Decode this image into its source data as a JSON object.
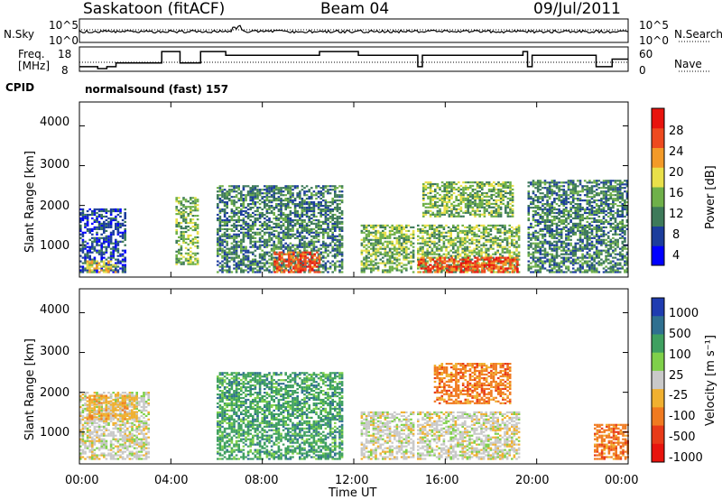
{
  "header": {
    "station": "Saskatoon (fitACF)",
    "beam": "Beam 04",
    "date": "09/Jul/2011"
  },
  "noise_panel": {
    "left_label": "N.Sky",
    "right_label": "N.Search",
    "left_ticks": [
      "10^5",
      "10^0"
    ],
    "right_ticks": [
      "10^5",
      "10^0"
    ]
  },
  "freq_panel": {
    "left_label_1": "Freq.",
    "left_label_2": "[MHz]",
    "right_label": "Nave",
    "left_ticks": [
      "18",
      "8"
    ],
    "right_ticks": [
      "60",
      "0"
    ]
  },
  "cpid": {
    "label": "CPID",
    "value": "normalsound (fast) 157"
  },
  "power_panel": {
    "ylabel": "Slant Range [km]",
    "yticks": [
      "4000",
      "3000",
      "2000",
      "1000"
    ],
    "colorbar_label": "Power [dB]",
    "colorbar_ticks": [
      "28",
      "24",
      "20",
      "16",
      "12",
      "8",
      "4"
    ],
    "colors": [
      "#0000ff",
      "#1c3d9c",
      "#3e7a5a",
      "#6fb04a",
      "#e9e04a",
      "#f39a28",
      "#ee4a1f",
      "#e8140e"
    ]
  },
  "velocity_panel": {
    "ylabel": "Slant Range [km]",
    "yticks": [
      "4000",
      "3000",
      "2000",
      "1000"
    ],
    "colorbar_label": "Velocity [m s⁻¹]",
    "colorbar_ticks": [
      "1000",
      "500",
      "100",
      "25",
      "-25",
      "-100",
      "-500",
      "-1000"
    ],
    "colors": [
      "#1f3cb0",
      "#2f7090",
      "#3fa060",
      "#7fd04a",
      "#c9c9c9",
      "#f0b030",
      "#f07a20",
      "#e83a18",
      "#e8140e"
    ]
  },
  "xaxis": {
    "label": "Time UT",
    "ticks": [
      "00:00",
      "04:00",
      "08:00",
      "12:00",
      "16:00",
      "20:00",
      "00:00"
    ]
  },
  "chart_data": {
    "type": "heatmap",
    "title": "Saskatoon (fitACF)  Beam 04  09/Jul/2011",
    "xlabel": "Time UT",
    "x_range_hours": [
      0,
      24
    ],
    "y_range_km": [
      200,
      4600
    ],
    "panels": [
      {
        "name": "Power [dB]",
        "ylabel": "Slant Range [km]",
        "colorbar": [
          4,
          8,
          12,
          16,
          20,
          24,
          28
        ],
        "data_gaps_hours": [
          [
            3.6,
            4.2
          ],
          [
            5.2,
            5.9
          ],
          [
            11.7,
            12.2
          ],
          [
            14.6,
            14.7
          ],
          [
            19.3,
            19.6
          ]
        ],
        "echo_regions": [
          {
            "t": [
              0.0,
              2.0
            ],
            "range_km": [
              300,
              1900
            ],
            "level_db": 8
          },
          {
            "t": [
              0.3,
              1.6
            ],
            "range_km": [
              300,
              600
            ],
            "level_db": 20
          },
          {
            "t": [
              4.2,
              5.2
            ],
            "range_km": [
              500,
              2200
            ],
            "level_db": 16
          },
          {
            "t": [
              6.0,
              11.5
            ],
            "range_km": [
              300,
              2500
            ],
            "level_db": 12
          },
          {
            "t": [
              8.5,
              10.5
            ],
            "range_km": [
              300,
              800
            ],
            "level_db": 26
          },
          {
            "t": [
              12.3,
              19.2
            ],
            "range_km": [
              300,
              1500
            ],
            "level_db": 14
          },
          {
            "t": [
              14.8,
              19.2
            ],
            "range_km": [
              300,
              700
            ],
            "level_db": 26
          },
          {
            "t": [
              15.0,
              19.0
            ],
            "range_km": [
              1700,
              2600
            ],
            "level_db": 16
          },
          {
            "t": [
              19.6,
              24.0
            ],
            "range_km": [
              300,
              2600
            ],
            "level_db": 10
          }
        ]
      },
      {
        "name": "Velocity [m s-1]",
        "ylabel": "Slant Range [km]",
        "colorbar": [
          1000,
          500,
          100,
          25,
          -25,
          -100,
          -500,
          -1000
        ],
        "echo_regions": [
          {
            "t": [
              0.0,
              3.0
            ],
            "range_km": [
              300,
              2000
            ],
            "velocity": -25
          },
          {
            "t": [
              0.3,
              2.5
            ],
            "range_km": [
              1300,
              1900
            ],
            "velocity": -100
          },
          {
            "t": [
              6.0,
              11.5
            ],
            "range_km": [
              300,
              2500
            ],
            "velocity": 100
          },
          {
            "t": [
              12.3,
              19.2
            ],
            "range_km": [
              300,
              1500
            ],
            "velocity": -25
          },
          {
            "t": [
              15.5,
              18.8
            ],
            "range_km": [
              1700,
              2700
            ],
            "velocity": -300
          },
          {
            "t": [
              22.5,
              24.0
            ],
            "range_km": [
              300,
              1200
            ],
            "velocity": -300
          }
        ]
      }
    ]
  }
}
